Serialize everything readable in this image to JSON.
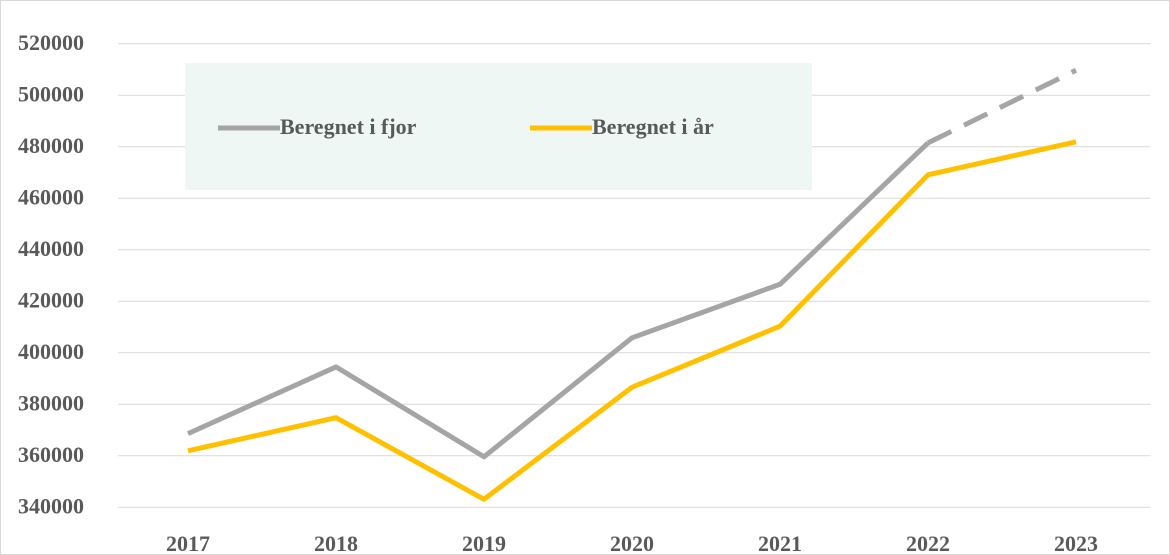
{
  "chart_data": {
    "type": "line",
    "categories": [
      "2017",
      "2018",
      "2019",
      "2020",
      "2021",
      "2022",
      "2023"
    ],
    "series": [
      {
        "name": "Beregnet i fjor",
        "color": "#a5a5a5",
        "values": [
          368600,
          394500,
          359600,
          405800,
          426600,
          481500,
          509700
        ],
        "dash_from_index": 5
      },
      {
        "name": "Beregnet i år",
        "color": "#ffc000",
        "values": [
          361900,
          374800,
          343100,
          386600,
          410300,
          469100,
          481900
        ]
      }
    ],
    "ylim": [
      330000,
      530000
    ],
    "yticks": [
      340000,
      360000,
      380000,
      400000,
      420000,
      440000,
      460000,
      480000,
      500000,
      520000
    ],
    "grid": true,
    "legend": "top-left"
  }
}
